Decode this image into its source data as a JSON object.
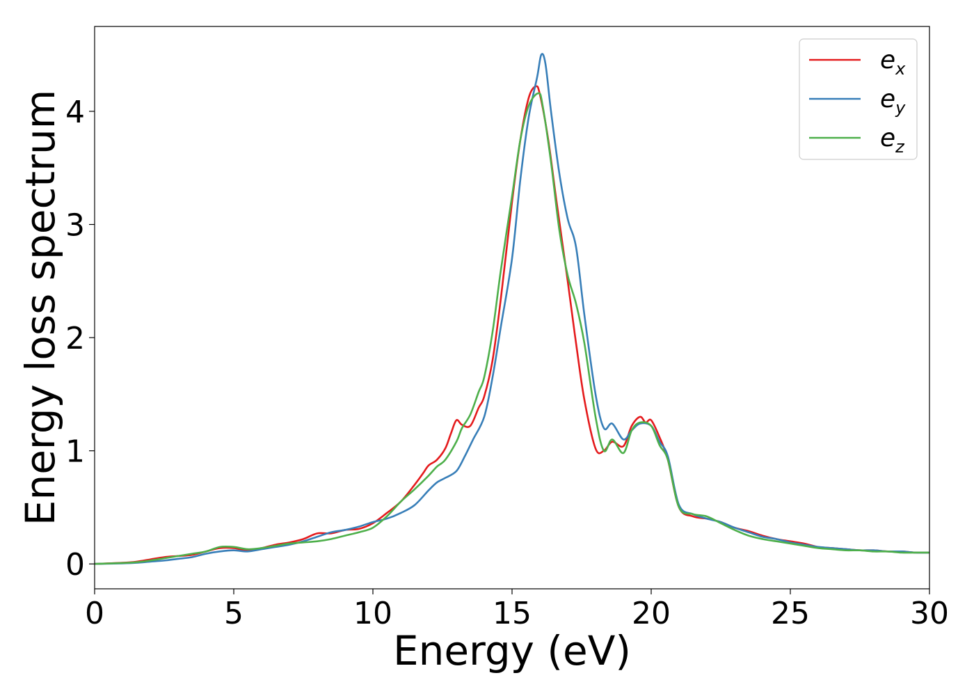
{
  "chart_data": {
    "type": "line",
    "title": "",
    "xlabel": "Energy (eV)",
    "ylabel": "Energy loss spectrum",
    "xlim": [
      0,
      30
    ],
    "ylim": [
      -0.22,
      4.75
    ],
    "xticks": [
      0,
      5,
      10,
      15,
      20,
      25,
      30
    ],
    "xtick_labels": [
      "0",
      "5",
      "10",
      "15",
      "20",
      "25",
      "30"
    ],
    "yticks": [
      0,
      1,
      2,
      3,
      4
    ],
    "ytick_labels": [
      "0",
      "1",
      "2",
      "3",
      "4"
    ],
    "grid": false,
    "legend_position": "top-right",
    "series": [
      {
        "name": "e",
        "name_sub": "x",
        "color": "#e41a1c",
        "x": [
          0,
          1,
          1.5,
          2,
          2.5,
          3,
          3.5,
          4,
          4.5,
          5,
          5.5,
          6,
          6.5,
          7,
          7.5,
          8,
          8.5,
          9,
          9.5,
          10,
          10.5,
          11,
          11.5,
          11.8,
          12,
          12.3,
          12.6,
          12.8,
          13,
          13.2,
          13.5,
          13.8,
          14,
          14.3,
          14.6,
          15,
          15.3,
          15.6,
          15.85,
          16,
          16.3,
          16.6,
          17,
          17.3,
          17.6,
          18,
          18.3,
          18.6,
          19,
          19.3,
          19.6,
          19.8,
          20,
          20.3,
          20.6,
          21,
          21.5,
          22,
          22.5,
          23,
          23.5,
          24,
          24.5,
          25,
          25.5,
          26,
          26.5,
          27,
          27.5,
          28,
          28.5,
          29,
          29.5,
          30
        ],
        "y": [
          0,
          0.01,
          0.02,
          0.04,
          0.06,
          0.07,
          0.08,
          0.11,
          0.14,
          0.14,
          0.12,
          0.14,
          0.17,
          0.19,
          0.22,
          0.27,
          0.27,
          0.3,
          0.31,
          0.36,
          0.45,
          0.55,
          0.7,
          0.8,
          0.87,
          0.92,
          1.02,
          1.15,
          1.27,
          1.23,
          1.22,
          1.38,
          1.48,
          1.8,
          2.35,
          3.2,
          3.75,
          4.12,
          4.22,
          4.15,
          3.75,
          3.2,
          2.5,
          1.95,
          1.45,
          1.02,
          1.0,
          1.08,
          1.04,
          1.22,
          1.3,
          1.25,
          1.27,
          1.12,
          0.92,
          0.5,
          0.42,
          0.4,
          0.37,
          0.32,
          0.29,
          0.25,
          0.22,
          0.2,
          0.18,
          0.15,
          0.14,
          0.13,
          0.12,
          0.12,
          0.11,
          0.11,
          0.1,
          0.1
        ]
      },
      {
        "name": "e",
        "name_sub": "y",
        "color": "#377eb8",
        "x": [
          0,
          1,
          1.5,
          2,
          2.5,
          3,
          3.5,
          4,
          4.5,
          5,
          5.5,
          6,
          6.5,
          7,
          7.5,
          8,
          8.5,
          9,
          9.5,
          10,
          10.5,
          11,
          11.5,
          12,
          12.3,
          12.6,
          13,
          13.3,
          13.6,
          14,
          14.3,
          14.6,
          15,
          15.3,
          15.6,
          15.9,
          16.05,
          16.2,
          16.4,
          16.7,
          17,
          17.3,
          17.6,
          18,
          18.3,
          18.6,
          19,
          19.3,
          19.6,
          20,
          20.3,
          20.6,
          21,
          21.5,
          22,
          22.5,
          23,
          23.5,
          24,
          24.5,
          25,
          25.5,
          26,
          26.5,
          27,
          27.5,
          28,
          28.5,
          29,
          29.5,
          30
        ],
        "y": [
          0,
          0.005,
          0.01,
          0.02,
          0.03,
          0.045,
          0.06,
          0.09,
          0.11,
          0.12,
          0.11,
          0.13,
          0.15,
          0.17,
          0.2,
          0.24,
          0.28,
          0.3,
          0.33,
          0.37,
          0.4,
          0.45,
          0.52,
          0.65,
          0.72,
          0.76,
          0.82,
          0.95,
          1.1,
          1.3,
          1.65,
          2.1,
          2.7,
          3.4,
          3.95,
          4.3,
          4.5,
          4.42,
          4.0,
          3.45,
          3.05,
          2.8,
          2.2,
          1.5,
          1.2,
          1.24,
          1.1,
          1.18,
          1.24,
          1.22,
          1.08,
          0.95,
          0.52,
          0.44,
          0.4,
          0.37,
          0.32,
          0.28,
          0.24,
          0.22,
          0.19,
          0.17,
          0.15,
          0.14,
          0.13,
          0.12,
          0.12,
          0.11,
          0.11,
          0.1,
          0.1
        ]
      },
      {
        "name": "e",
        "name_sub": "z",
        "color": "#4daf4a",
        "x": [
          0,
          1,
          1.5,
          2,
          2.5,
          3,
          3.5,
          4,
          4.5,
          5,
          5.5,
          6,
          6.5,
          7,
          7.5,
          8,
          8.5,
          9,
          9.5,
          10,
          10.5,
          11,
          11.5,
          12,
          12.3,
          12.6,
          13,
          13.2,
          13.5,
          13.8,
          14,
          14.3,
          14.6,
          15,
          15.3,
          15.6,
          15.95,
          16.1,
          16.4,
          16.7,
          17,
          17.3,
          17.6,
          18,
          18.3,
          18.6,
          19,
          19.3,
          19.6,
          20,
          20.3,
          20.6,
          21,
          21.5,
          22,
          22.5,
          23,
          23.5,
          24,
          24.5,
          25,
          25.5,
          26,
          26.5,
          27,
          27.5,
          28,
          28.5,
          29,
          29.5,
          30
        ],
        "y": [
          0,
          0.008,
          0.015,
          0.03,
          0.05,
          0.07,
          0.09,
          0.11,
          0.15,
          0.15,
          0.13,
          0.14,
          0.16,
          0.18,
          0.19,
          0.2,
          0.22,
          0.25,
          0.28,
          0.32,
          0.42,
          0.55,
          0.66,
          0.78,
          0.86,
          0.92,
          1.08,
          1.2,
          1.32,
          1.52,
          1.65,
          2.05,
          2.6,
          3.25,
          3.75,
          4.05,
          4.16,
          4.05,
          3.55,
          2.95,
          2.55,
          2.3,
          1.95,
          1.3,
          1.0,
          1.1,
          0.98,
          1.18,
          1.25,
          1.22,
          1.05,
          0.92,
          0.5,
          0.44,
          0.42,
          0.36,
          0.3,
          0.25,
          0.22,
          0.2,
          0.18,
          0.16,
          0.14,
          0.13,
          0.12,
          0.12,
          0.11,
          0.11,
          0.1,
          0.1,
          0.1
        ]
      }
    ]
  }
}
